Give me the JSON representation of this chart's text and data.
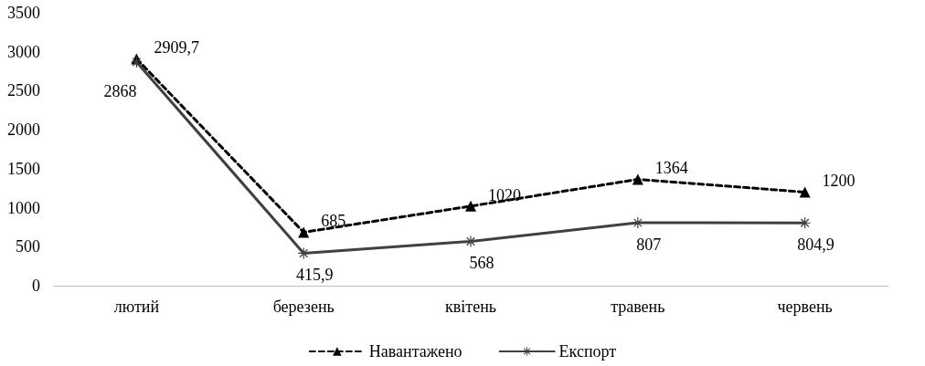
{
  "chart_data": {
    "type": "line",
    "categories": [
      "лютий",
      "березень",
      "квітень",
      "травень",
      "червень"
    ],
    "series": [
      {
        "name": "Навантажено",
        "color": "#000000",
        "marker": "triangle",
        "line_style": "dashed",
        "values": [
          2909.7,
          685,
          1020,
          1364,
          1200
        ],
        "value_labels": [
          "2909,7",
          "685",
          "1020",
          "1364",
          "1200"
        ]
      },
      {
        "name": "Експорт",
        "color": "#404040",
        "marker": "star",
        "line_style": "solid",
        "values": [
          2868,
          415.9,
          568,
          807,
          804.9
        ],
        "value_labels": [
          "2868",
          "415,9",
          "568",
          "807",
          "804,9"
        ]
      }
    ],
    "ylim": [
      0,
      3500
    ],
    "yticks": [
      0,
      500,
      1000,
      1500,
      2000,
      2500,
      3000,
      3500
    ],
    "grid": false,
    "legend": "bottom"
  }
}
